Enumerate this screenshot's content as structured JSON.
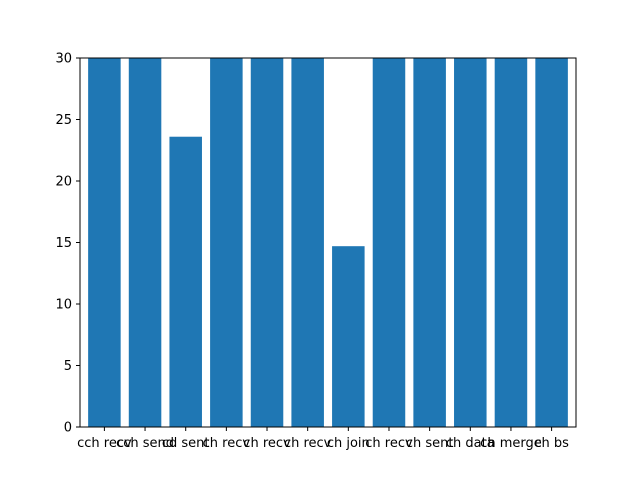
{
  "chart_data": {
    "type": "bar",
    "categories": [
      "cch recv",
      "cch send",
      "cd sent",
      "ch recv",
      "ch recv",
      "ch recv",
      "ch join",
      "ch recv",
      "ch sent",
      "ch data",
      "ch merge",
      "ch bs"
    ],
    "values": [
      30,
      30,
      23.6,
      30,
      30,
      30,
      14.7,
      30,
      30,
      30,
      30,
      30
    ],
    "ylim": [
      0,
      30
    ],
    "yticks": [
      0,
      5,
      10,
      15,
      20,
      25,
      30
    ],
    "bar_color": "#1f77b4",
    "grid": false,
    "title": "",
    "xlabel": "",
    "ylabel": ""
  }
}
